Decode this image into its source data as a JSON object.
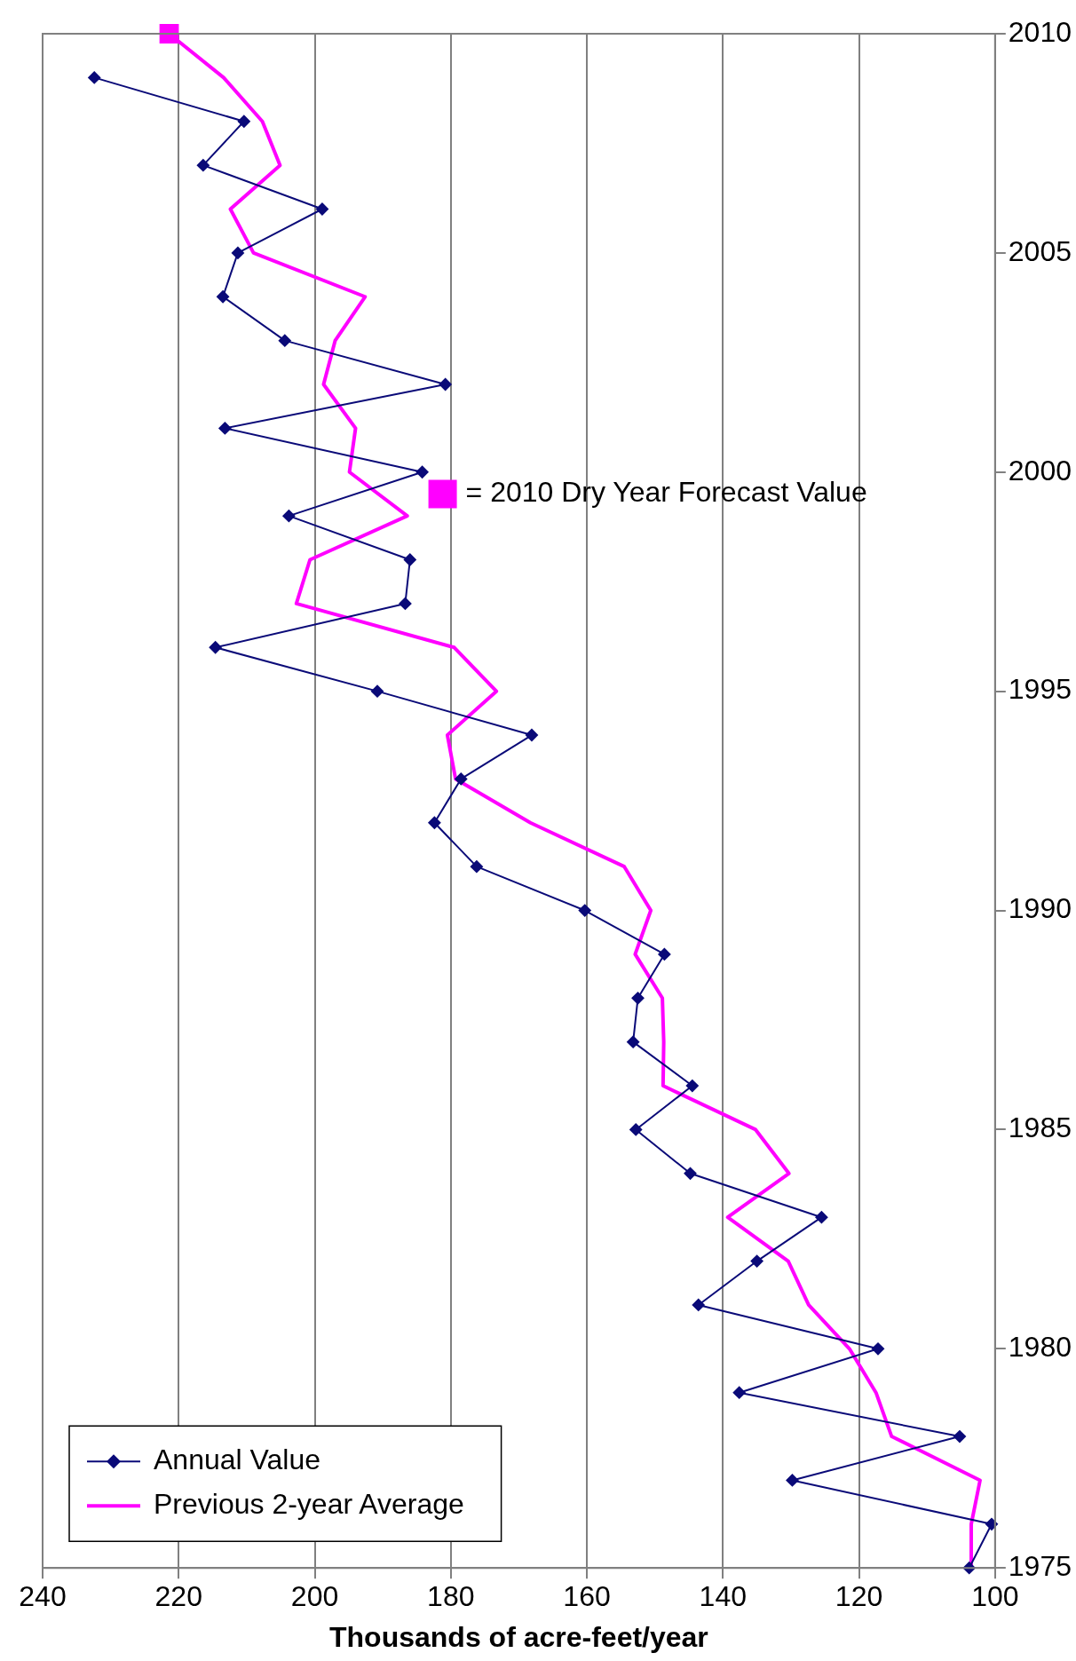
{
  "chart_data": {
    "type": "line",
    "xlabel": "Thousands of acre-feet/year",
    "xlim": [
      240,
      100
    ],
    "xticks": [
      240,
      220,
      200,
      180,
      160,
      140,
      120,
      100
    ],
    "ylim": [
      1975,
      2010
    ],
    "yticks": [
      1975,
      1980,
      1985,
      1990,
      1995,
      2000,
      2005,
      2010
    ],
    "grid": "x",
    "legend": "bottom left",
    "series": [
      {
        "name": "Annual Value",
        "color": "#0a0a78",
        "marker": "diamond",
        "x": [
          103.8,
          100.5,
          129.8,
          105.2,
          137.6,
          117.2,
          143.6,
          135,
          125.5,
          144.8,
          152.8,
          144.5,
          153.2,
          152.5,
          148.6,
          160.3,
          176.2,
          182.4,
          178.5,
          168.1,
          190.8,
          214.6,
          186.7,
          186,
          203.8,
          184.2,
          213.2,
          180.8,
          204.4,
          213.5,
          211.3,
          198.9,
          216.4,
          210.4,
          232.4
        ],
        "values": [
          1975,
          1976,
          1977,
          1978,
          1979,
          1980,
          1981,
          1982,
          1983,
          1984,
          1985,
          1986,
          1987,
          1988,
          1989,
          1990,
          1991,
          1992,
          1993,
          1994,
          1995,
          1996,
          1997,
          1998,
          1999,
          2000,
          2001,
          2002,
          2003,
          2004,
          2005,
          2006,
          2007,
          2008,
          2009
        ]
      },
      {
        "name": "Previous 2-year Average",
        "color": "#ff00ff",
        "marker": "none",
        "x": [
          103.5,
          103.5,
          102.2,
          115.2,
          117.5,
          121.4,
          127.4,
          130.4,
          139.3,
          130.3,
          135.2,
          148.8,
          148.7,
          148.9,
          152.9,
          150.6,
          154.5,
          168.3,
          179.3,
          180.5,
          173.3,
          179.5,
          202.7,
          200.7,
          186.4,
          194.9,
          194,
          198.7,
          197,
          192.6,
          209,
          212.4,
          205.1,
          207.7,
          213.4,
          221.4
        ],
        "values": [
          1975,
          1976,
          1977,
          1978,
          1979,
          1980,
          1981,
          1982,
          1983,
          1984,
          1985,
          1986,
          1987,
          1988,
          1989,
          1990,
          1991,
          1992,
          1993,
          1994,
          1995,
          1996,
          1997,
          1998,
          1999,
          2000,
          2001,
          2002,
          2003,
          2004,
          2005,
          2006,
          2007,
          2008,
          2009,
          2010
        ]
      },
      {
        "name": "= 2010 Dry Year Forecast Value",
        "type": "scatter",
        "color": "#ff00ff",
        "marker": "square",
        "x": [
          221.4
        ],
        "values": [
          2010
        ]
      }
    ]
  }
}
